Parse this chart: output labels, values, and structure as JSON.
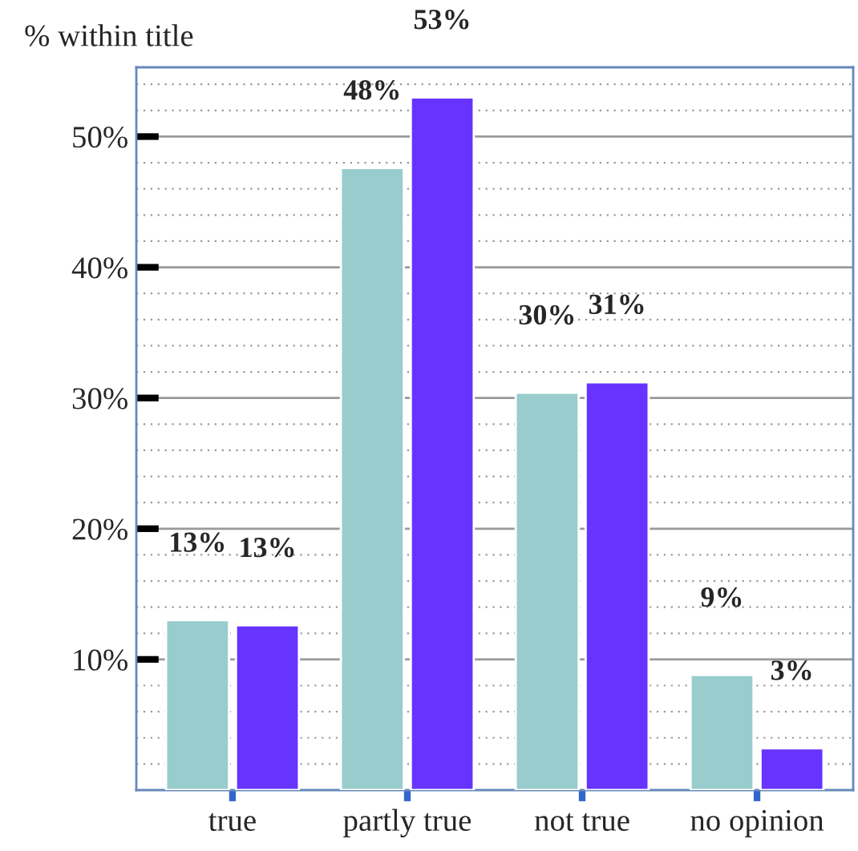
{
  "chart_data": {
    "type": "bar",
    "ylabel": "% within title",
    "categories": [
      "true",
      "partly true",
      "not true",
      "no opinion"
    ],
    "series": [
      {
        "color": "#99cccc",
        "values": [
          13.0,
          47.6,
          30.4,
          8.8
        ],
        "value_labels": [
          "13%",
          "48%",
          "30%",
          "9%"
        ]
      },
      {
        "color": "#6633ff",
        "values": [
          12.6,
          53.0,
          31.2,
          3.2
        ],
        "value_labels": [
          "13%",
          "53%",
          "31%",
          "3%"
        ]
      }
    ],
    "ylim": [
      0,
      55.3
    ],
    "yticks": [
      {
        "value": 10,
        "label": "10%"
      },
      {
        "value": 20,
        "label": "20%"
      },
      {
        "value": 30,
        "label": "30%"
      },
      {
        "value": 40,
        "label": "40%"
      },
      {
        "value": 50,
        "label": "50%"
      }
    ],
    "grid": "y",
    "legend": false
  }
}
